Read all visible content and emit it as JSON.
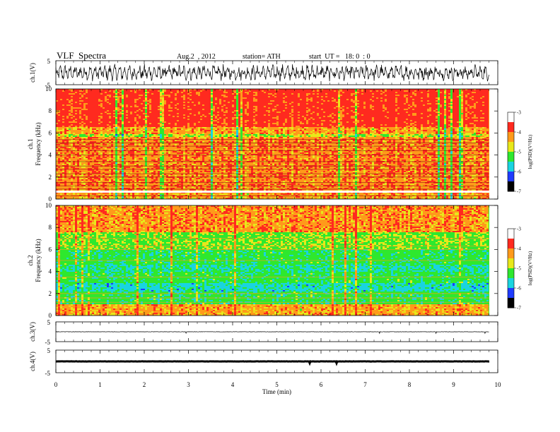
{
  "header": {
    "title": "VLF  Spectra",
    "date": "Aug.2  , 2012",
    "station": "station= ATH",
    "start": "start  UT =   18: 0  : 0"
  },
  "colors": {
    "red": "#ff2a1f",
    "orange": "#ff9a1a",
    "yellow": "#e8e81a",
    "green": "#2ee82e",
    "cyan": "#19d4e0",
    "blue": "#1f3cff",
    "black": "#000000"
  },
  "chart_data": [
    {
      "type": "line",
      "ylabel": "ch.1(V)",
      "xlim": [
        0,
        10
      ],
      "ylim": [
        -5,
        5
      ],
      "yticks": [
        "5",
        "-5"
      ],
      "amplitude": 2.6
    },
    {
      "type": "heatmap",
      "ylabel": "ch.1\nFrequency  (kHz)",
      "ylabel_line1": "ch.1",
      "ylabel_line2": "Frequency  (kHz)",
      "xlim": [
        0,
        9.8
      ],
      "ylim": [
        0,
        10
      ],
      "yticks": [
        "0",
        "2",
        "4",
        "6",
        "8",
        "10"
      ],
      "colorbar": {
        "label": "log(PSD)(V²/Hz)",
        "range": [
          -7,
          -3
        ],
        "ticks": [
          "-3",
          "-4",
          "-5",
          "-6",
          "-7"
        ]
      }
    },
    {
      "type": "heatmap",
      "ylabel_line1": "ch.2",
      "ylabel_line2": "Frequency  (kHz)",
      "xlim": [
        0,
        9.8
      ],
      "ylim": [
        0,
        10
      ],
      "yticks": [
        "0",
        "2",
        "4",
        "6",
        "8",
        "10"
      ],
      "colorbar": {
        "label": "log(PSD)(V²/Hz)",
        "range": [
          -7,
          -3
        ],
        "ticks": [
          "-3",
          "-4",
          "-5",
          "-6",
          "-7"
        ]
      }
    },
    {
      "type": "line",
      "ylabel": "ch.3(V)",
      "xlim": [
        0,
        10
      ],
      "ylim": [
        -5,
        5
      ],
      "yticks": [
        "5",
        "-5"
      ],
      "amplitude": 0.15
    },
    {
      "type": "line",
      "ylabel": "ch.4(V)",
      "xlim": [
        0,
        10
      ],
      "ylim": [
        -5,
        5
      ],
      "yticks": [
        "5",
        "-5"
      ],
      "amplitude": 0.1
    }
  ],
  "xaxis": {
    "label": "Time  (min)",
    "ticks": [
      "0",
      "1",
      "2",
      "3",
      "4",
      "5",
      "6",
      "7",
      "8",
      "9",
      "10"
    ]
  }
}
